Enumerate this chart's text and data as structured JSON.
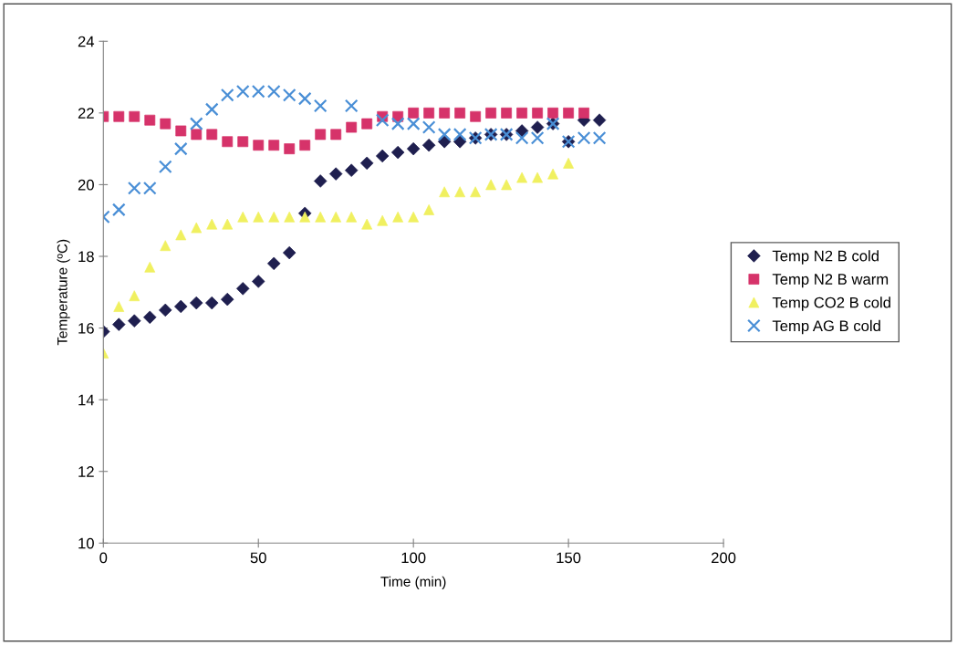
{
  "chart_data": {
    "type": "scatter",
    "xlabel": "Time (min)",
    "ylabel": "Temperature (ºC)",
    "x": [
      0,
      5,
      10,
      15,
      20,
      25,
      30,
      35,
      40,
      45,
      50,
      55,
      60,
      65,
      70,
      75,
      80,
      85,
      90,
      95,
      100,
      105,
      110,
      115,
      120,
      125,
      130,
      135,
      140,
      145,
      150,
      155,
      160
    ],
    "xlim": [
      0,
      200
    ],
    "xticks": [
      0,
      50,
      100,
      150,
      200
    ],
    "ylim": [
      10,
      24
    ],
    "yticks": [
      10,
      12,
      14,
      16,
      18,
      20,
      22,
      24
    ],
    "grid": false,
    "legend": "right",
    "series": [
      {
        "name": "Temp N2 B cold",
        "color": "#1f1f4f",
        "marker": "diamond",
        "values": [
          15.9,
          16.1,
          16.2,
          16.3,
          16.5,
          16.6,
          16.7,
          16.7,
          16.8,
          17.1,
          17.3,
          17.8,
          18.1,
          19.2,
          20.1,
          20.3,
          20.4,
          20.6,
          20.8,
          20.9,
          21.0,
          21.1,
          21.2,
          21.2,
          21.3,
          21.4,
          21.4,
          21.5,
          21.6,
          21.7,
          21.2,
          21.8,
          21.8
        ]
      },
      {
        "name": "Temp N2 B warm",
        "color": "#d6336a",
        "marker": "square",
        "values": [
          21.9,
          21.9,
          21.9,
          21.8,
          21.7,
          21.5,
          21.4,
          21.4,
          21.2,
          21.2,
          21.1,
          21.1,
          21.0,
          21.1,
          21.4,
          21.4,
          21.6,
          21.7,
          21.9,
          21.9,
          22.0,
          22.0,
          22.0,
          22.0,
          21.9,
          22.0,
          22.0,
          22.0,
          22.0,
          22.0,
          22.0,
          22.0,
          null
        ]
      },
      {
        "name": "Temp CO2 B cold",
        "color": "#f0f060",
        "marker": "triangle",
        "values": [
          15.3,
          16.6,
          16.9,
          17.7,
          18.3,
          18.6,
          18.8,
          18.9,
          18.9,
          19.1,
          19.1,
          19.1,
          19.1,
          19.1,
          19.1,
          19.1,
          19.1,
          18.9,
          19.0,
          19.1,
          19.1,
          19.3,
          19.8,
          19.8,
          19.8,
          20.0,
          20.0,
          20.2,
          20.2,
          20.3,
          20.6,
          null,
          null
        ]
      },
      {
        "name": "Temp AG B cold",
        "color": "#4a8fd6",
        "marker": "cross",
        "values": [
          19.1,
          19.3,
          19.9,
          19.9,
          20.5,
          21.0,
          21.7,
          22.1,
          22.5,
          22.6,
          22.6,
          22.6,
          22.5,
          22.4,
          22.2,
          null,
          22.2,
          null,
          21.8,
          21.7,
          21.7,
          21.6,
          21.4,
          21.4,
          21.3,
          21.4,
          21.4,
          21.3,
          21.3,
          21.7,
          21.2,
          21.3,
          21.3
        ]
      }
    ]
  }
}
